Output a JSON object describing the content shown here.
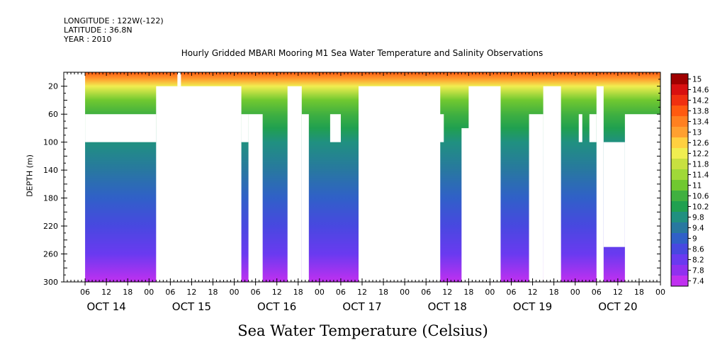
{
  "header": {
    "longitude": "LONGITUDE : 122W(-122)",
    "latitude": "LATITUDE : 36.8N",
    "year": "YEAR : 2010"
  },
  "chart_data": {
    "type": "heatmap",
    "title": "Hourly Gridded MBARI Mooring M1 Sea Water Temperature and Salinity Observations",
    "variable_label": "Sea Water Temperature (Celsius)",
    "ylabel": "DEPTH (m)",
    "xlabel": "",
    "y_range_m": [
      0,
      300
    ],
    "y_ticks": [
      20,
      60,
      100,
      140,
      180,
      220,
      260,
      300
    ],
    "x_range_hours": [
      0,
      168
    ],
    "x_tick_labels": [
      "06",
      "12",
      "18",
      "00",
      "06",
      "12",
      "18",
      "00",
      "06",
      "12",
      "18",
      "00",
      "06",
      "12",
      "18",
      "00",
      "06",
      "12",
      "18",
      "00",
      "06",
      "12",
      "18",
      "00",
      "06",
      "12",
      "18",
      "00"
    ],
    "x_tick_hours": [
      6,
      12,
      18,
      24,
      30,
      36,
      42,
      48,
      54,
      60,
      66,
      72,
      78,
      84,
      90,
      96,
      102,
      108,
      114,
      120,
      126,
      132,
      138,
      144,
      150,
      156,
      162,
      168
    ],
    "day_labels": [
      "OCT 14",
      "OCT 15",
      "OCT 16",
      "OCT 17",
      "OCT 18",
      "OCT 19",
      "OCT 20"
    ],
    "colorbar": {
      "levels": [
        15,
        14.6,
        14.2,
        13.8,
        13.4,
        13,
        12.6,
        12.2,
        11.8,
        11.4,
        11,
        10.6,
        10.2,
        9.8,
        9.4,
        9,
        8.6,
        8.2,
        7.8,
        7.4
      ],
      "colors": [
        "#A00000",
        "#D81010",
        "#F03010",
        "#FF5A10",
        "#FF8020",
        "#FFA030",
        "#FFD040",
        "#F0EE50",
        "#C8E040",
        "#A0D838",
        "#70C830",
        "#40B040",
        "#20A050",
        "#209080",
        "#2878A0",
        "#3060C8",
        "#4848E0",
        "#6A3AF0",
        "#9030F0",
        "#C030F0"
      ]
    },
    "depth_temperature_profile": [
      {
        "depth_m": 0,
        "temp_c": 13.8
      },
      {
        "depth_m": 10,
        "temp_c": 13.2
      },
      {
        "depth_m": 20,
        "temp_c": 12.4
      },
      {
        "depth_m": 40,
        "temp_c": 11.3
      },
      {
        "depth_m": 60,
        "temp_c": 10.7
      },
      {
        "depth_m": 80,
        "temp_c": 10.3
      },
      {
        "depth_m": 100,
        "temp_c": 9.9
      },
      {
        "depth_m": 140,
        "temp_c": 9.5
      },
      {
        "depth_m": 180,
        "temp_c": 9.1
      },
      {
        "depth_m": 220,
        "temp_c": 8.7
      },
      {
        "depth_m": 260,
        "temp_c": 8.2
      },
      {
        "depth_m": 300,
        "temp_c": 7.6
      }
    ],
    "missing_data_blocks": [
      {
        "hours": [
          0,
          6
        ],
        "depth_m": [
          0,
          300
        ]
      },
      {
        "hours": [
          6,
          26
        ],
        "depth_m": [
          60,
          100
        ]
      },
      {
        "hours": [
          26,
          50
        ],
        "depth_m": [
          20,
          300
        ]
      },
      {
        "hours": [
          32,
          33
        ],
        "depth_m": [
          0,
          20
        ]
      },
      {
        "hours": [
          50,
          52
        ],
        "depth_m": [
          60,
          100
        ]
      },
      {
        "hours": [
          52,
          56
        ],
        "depth_m": [
          60,
          300
        ]
      },
      {
        "hours": [
          63,
          67
        ],
        "depth_m": [
          20,
          300
        ]
      },
      {
        "hours": [
          67,
          69
        ],
        "depth_m": [
          60,
          300
        ]
      },
      {
        "hours": [
          75,
          78
        ],
        "depth_m": [
          60,
          100
        ]
      },
      {
        "hours": [
          83,
          106
        ],
        "depth_m": [
          20,
          300
        ]
      },
      {
        "hours": [
          114,
          123
        ],
        "depth_m": [
          20,
          300
        ]
      },
      {
        "hours": [
          112,
          115
        ],
        "depth_m": [
          80,
          300
        ]
      },
      {
        "hours": [
          104,
          107
        ],
        "depth_m": [
          60,
          100
        ]
      },
      {
        "hours": [
          131,
          135
        ],
        "depth_m": [
          60,
          300
        ]
      },
      {
        "hours": [
          135,
          140
        ],
        "depth_m": [
          20,
          300
        ]
      },
      {
        "hours": [
          145,
          146
        ],
        "depth_m": [
          60,
          100
        ]
      },
      {
        "hours": [
          148,
          150
        ],
        "depth_m": [
          60,
          100
        ]
      },
      {
        "hours": [
          150,
          152
        ],
        "depth_m": [
          20,
          300
        ]
      },
      {
        "hours": [
          152,
          158
        ],
        "depth_m": [
          100,
          250
        ]
      },
      {
        "hours": [
          158,
          168
        ],
        "depth_m": [
          60,
          300
        ]
      }
    ]
  }
}
